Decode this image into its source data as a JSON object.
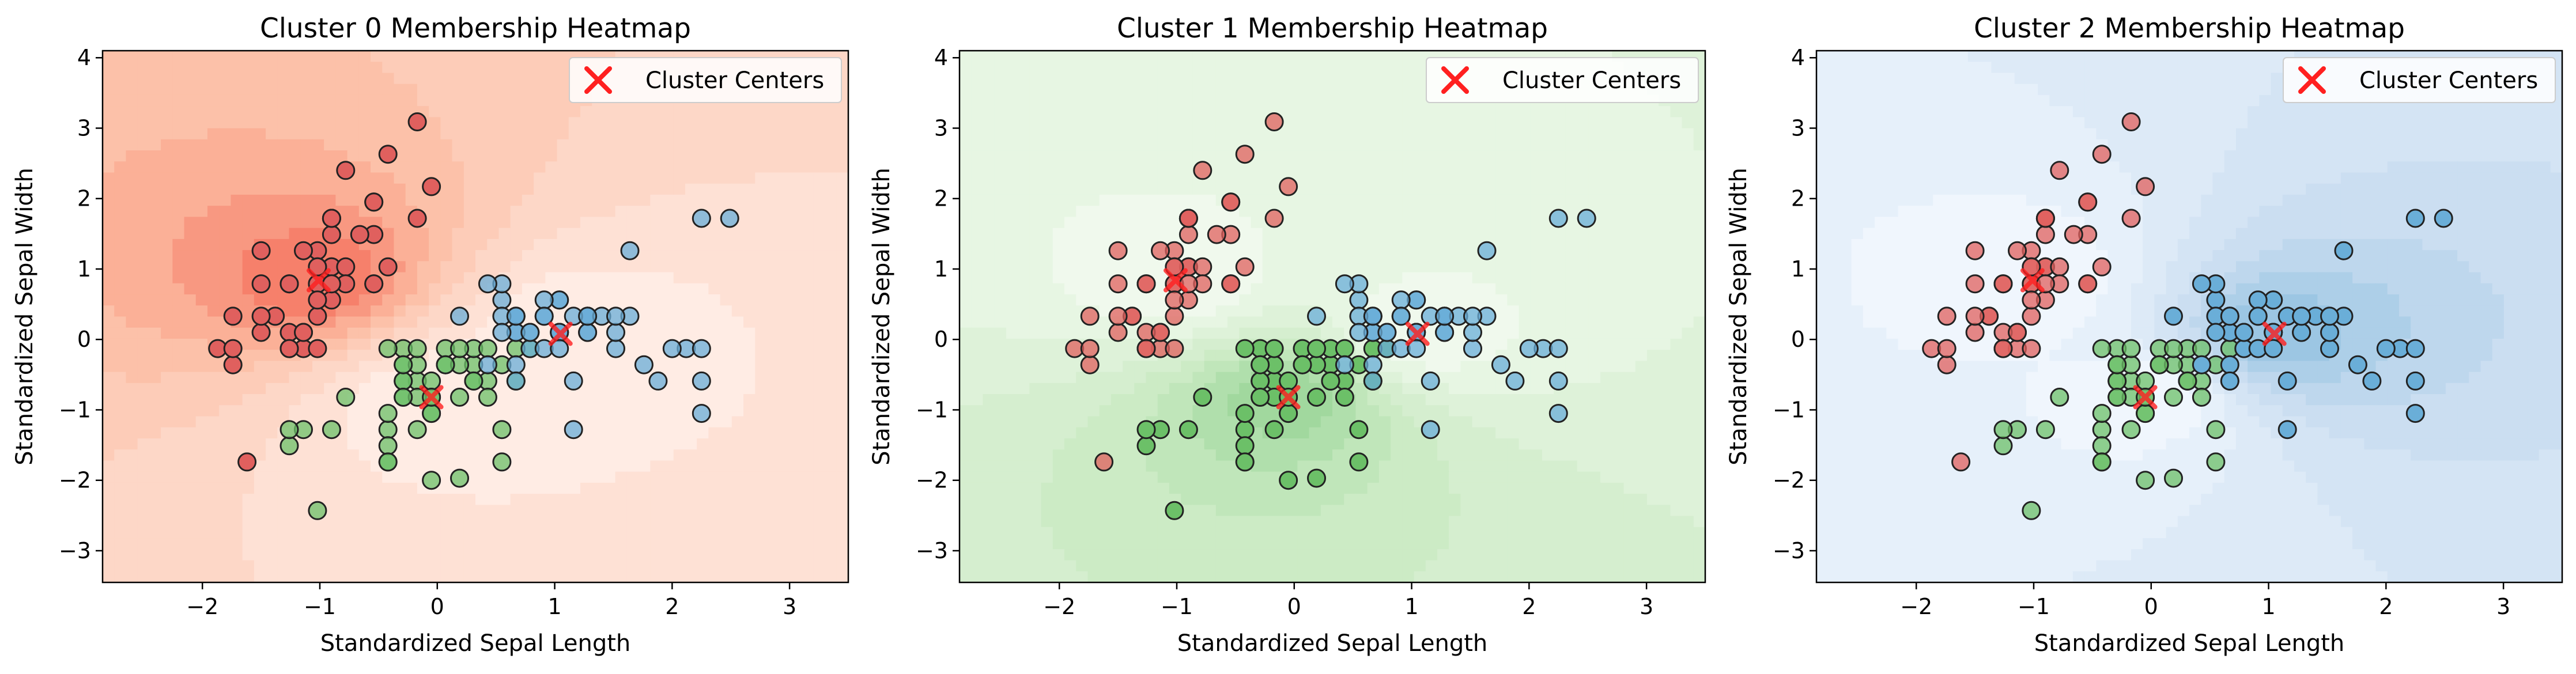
{
  "chart_data": [
    {
      "type": "scatter",
      "title": "Cluster 0 Membership Heatmap",
      "xlabel": "Standardized Sepal Length",
      "ylabel": "Standardized Sepal Width",
      "xlim": [
        -2.85,
        3.5
      ],
      "ylim": [
        -3.45,
        4.1
      ],
      "xticks": [
        -2,
        -1,
        0,
        1,
        2,
        3
      ],
      "yticks": [
        -3,
        -2,
        -1,
        0,
        1,
        2,
        3,
        4
      ],
      "legend": {
        "label": "Cluster Centers",
        "position": "top-right"
      },
      "highlight_cluster": 0,
      "heatmap_colormap": "Reds",
      "grid": false
    },
    {
      "type": "scatter",
      "title": "Cluster 1 Membership Heatmap",
      "xlabel": "Standardized Sepal Length",
      "ylabel": "Standardized Sepal Width",
      "xlim": [
        -2.85,
        3.5
      ],
      "ylim": [
        -3.45,
        4.1
      ],
      "xticks": [
        -2,
        -1,
        0,
        1,
        2,
        3
      ],
      "yticks": [
        -3,
        -2,
        -1,
        0,
        1,
        2,
        3,
        4
      ],
      "legend": {
        "label": "Cluster Centers",
        "position": "top-right"
      },
      "highlight_cluster": 1,
      "heatmap_colormap": "Greens",
      "grid": false
    },
    {
      "type": "scatter",
      "title": "Cluster 2 Membership Heatmap",
      "xlabel": "Standardized Sepal Length",
      "ylabel": "Standardized Sepal Width",
      "xlim": [
        -2.85,
        3.5
      ],
      "ylim": [
        -3.45,
        4.1
      ],
      "xticks": [
        -2,
        -1,
        0,
        1,
        2,
        3
      ],
      "yticks": [
        -3,
        -2,
        -1,
        0,
        1,
        2,
        3,
        4
      ],
      "legend": {
        "label": "Cluster Centers",
        "position": "top-right"
      },
      "highlight_cluster": 2,
      "heatmap_colormap": "Blues",
      "grid": false
    }
  ],
  "clusters": {
    "colors": [
      "#e0605e",
      "#6cc068",
      "#6aaed8"
    ],
    "centers": [
      [
        -1.01,
        0.84
      ],
      [
        -0.05,
        -0.82
      ],
      [
        1.05,
        0.08
      ]
    ],
    "center_color": "#ff2020",
    "points": [
      [
        [
          -0.9,
          1.03
        ],
        [
          -1.14,
          -0.13
        ],
        [
          -1.38,
          0.33
        ],
        [
          -1.5,
          0.1
        ],
        [
          -1.02,
          1.26
        ],
        [
          -0.54,
          1.95
        ],
        [
          -1.5,
          0.79
        ],
        [
          -1.02,
          0.79
        ],
        [
          -1.74,
          -0.36
        ],
        [
          -1.14,
          0.1
        ],
        [
          -0.54,
          1.49
        ],
        [
          -1.26,
          0.79
        ],
        [
          -1.26,
          -0.13
        ],
        [
          -1.87,
          -0.13
        ],
        [
          -0.05,
          2.17
        ],
        [
          -0.17,
          3.09
        ],
        [
          -0.54,
          1.95
        ],
        [
          -0.9,
          1.03
        ],
        [
          -0.17,
          1.72
        ],
        [
          -0.9,
          1.72
        ],
        [
          -0.54,
          0.79
        ],
        [
          -0.9,
          1.49
        ],
        [
          -1.5,
          1.26
        ],
        [
          -0.9,
          0.56
        ],
        [
          -1.26,
          0.79
        ],
        [
          -1.02,
          -0.13
        ],
        [
          -1.02,
          0.79
        ],
        [
          -0.78,
          1.03
        ],
        [
          -0.78,
          0.79
        ],
        [
          -1.38,
          0.33
        ],
        [
          -1.26,
          0.1
        ],
        [
          -0.54,
          0.79
        ],
        [
          -0.78,
          2.4
        ],
        [
          -0.42,
          2.63
        ],
        [
          -1.14,
          0.1
        ],
        [
          -1.02,
          0.33
        ],
        [
          -0.42,
          1.03
        ],
        [
          -1.14,
          1.26
        ],
        [
          -1.74,
          -0.13
        ],
        [
          -0.9,
          0.79
        ],
        [
          -1.02,
          1.03
        ],
        [
          -1.62,
          -1.74
        ],
        [
          -1.74,
          0.33
        ],
        [
          -1.02,
          1.03
        ],
        [
          -0.9,
          1.72
        ],
        [
          -1.26,
          -0.13
        ],
        [
          -0.9,
          1.72
        ],
        [
          -1.5,
          0.33
        ],
        [
          -0.66,
          1.49
        ],
        [
          -1.02,
          0.56
        ]
      ],
      [
        [
          0.55,
          -1.74
        ],
        [
          -0.42,
          -1.74
        ],
        [
          -0.17,
          -1.28
        ],
        [
          0.79,
          -0.13
        ],
        [
          -0.29,
          -0.82
        ],
        [
          -1.14,
          -1.28
        ],
        [
          0.31,
          -0.36
        ],
        [
          -0.42,
          -1.28
        ],
        [
          -0.05,
          -1.05
        ],
        [
          0.19,
          -1.97
        ],
        [
          -0.29,
          -0.13
        ],
        [
          -0.17,
          -0.59
        ],
        [
          0.19,
          -0.82
        ],
        [
          -0.05,
          -0.82
        ],
        [
          -1.02,
          -2.43
        ],
        [
          -0.29,
          -0.59
        ],
        [
          0.43,
          -0.59
        ],
        [
          -0.05,
          -1.05
        ],
        [
          -0.29,
          -0.36
        ],
        [
          -0.17,
          -0.36
        ],
        [
          0.55,
          -1.28
        ],
        [
          -0.78,
          -0.82
        ],
        [
          -0.42,
          -1.05
        ],
        [
          -0.05,
          -0.59
        ],
        [
          0.31,
          -0.13
        ],
        [
          0.07,
          -0.13
        ],
        [
          -0.42,
          -1.51
        ],
        [
          -0.29,
          -0.59
        ],
        [
          -0.17,
          -0.82
        ],
        [
          -0.05,
          -0.82
        ],
        [
          0.67,
          -0.59
        ],
        [
          -1.26,
          -1.51
        ],
        [
          -0.42,
          -1.74
        ],
        [
          -0.29,
          -0.82
        ],
        [
          -0.9,
          -1.28
        ],
        [
          0.55,
          -0.36
        ],
        [
          0.31,
          -0.59
        ],
        [
          0.07,
          -0.36
        ],
        [
          0.43,
          -0.82
        ],
        [
          -0.29,
          -0.36
        ],
        [
          0.19,
          -0.36
        ],
        [
          0.67,
          -0.13
        ],
        [
          -0.42,
          -0.13
        ],
        [
          -1.26,
          -1.28
        ],
        [
          -0.05,
          -2.0
        ],
        [
          0.07,
          -0.36
        ],
        [
          -0.17,
          -0.13
        ],
        [
          0.31,
          -0.59
        ],
        [
          0.19,
          -0.13
        ],
        [
          0.43,
          -0.13
        ]
      ],
      [
        [
          1.28,
          0.1
        ],
        [
          0.55,
          0.56
        ],
        [
          1.04,
          0.1
        ],
        [
          0.67,
          0.33
        ],
        [
          2.25,
          1.72
        ],
        [
          2.49,
          1.72
        ],
        [
          1.64,
          0.33
        ],
        [
          1.28,
          0.33
        ],
        [
          0.79,
          -0.13
        ],
        [
          1.04,
          0.56
        ],
        [
          1.52,
          -0.13
        ],
        [
          0.55,
          0.79
        ],
        [
          1.16,
          -0.59
        ],
        [
          2.25,
          -1.05
        ],
        [
          1.28,
          0.33
        ],
        [
          1.04,
          0.1
        ],
        [
          0.67,
          -0.36
        ],
        [
          0.79,
          0.1
        ],
        [
          1.64,
          1.26
        ],
        [
          1.88,
          -0.59
        ],
        [
          2.25,
          -0.59
        ],
        [
          0.67,
          0.33
        ],
        [
          1.04,
          0.1
        ],
        [
          1.76,
          -0.36
        ],
        [
          1.28,
          0.1
        ],
        [
          2.12,
          -0.13
        ],
        [
          1.16,
          -1.28
        ],
        [
          1.4,
          0.33
        ],
        [
          0.55,
          0.33
        ],
        [
          1.04,
          0.56
        ],
        [
          0.67,
          0.1
        ],
        [
          0.91,
          0.33
        ],
        [
          0.19,
          0.33
        ],
        [
          0.67,
          0.1
        ],
        [
          2.25,
          -0.13
        ],
        [
          1.52,
          0.1
        ],
        [
          0.79,
          0.1
        ],
        [
          0.91,
          -0.13
        ],
        [
          2.0,
          -0.13
        ],
        [
          0.43,
          0.79
        ],
        [
          0.67,
          -0.59
        ],
        [
          1.16,
          0.33
        ],
        [
          1.04,
          -0.13
        ],
        [
          0.55,
          0.1
        ],
        [
          0.91,
          0.56
        ],
        [
          1.28,
          0.33
        ],
        [
          1.52,
          0.33
        ],
        [
          0.43,
          -0.36
        ],
        [
          0.67,
          0.33
        ],
        [
          0.91,
          0.33
        ]
      ]
    ]
  }
}
